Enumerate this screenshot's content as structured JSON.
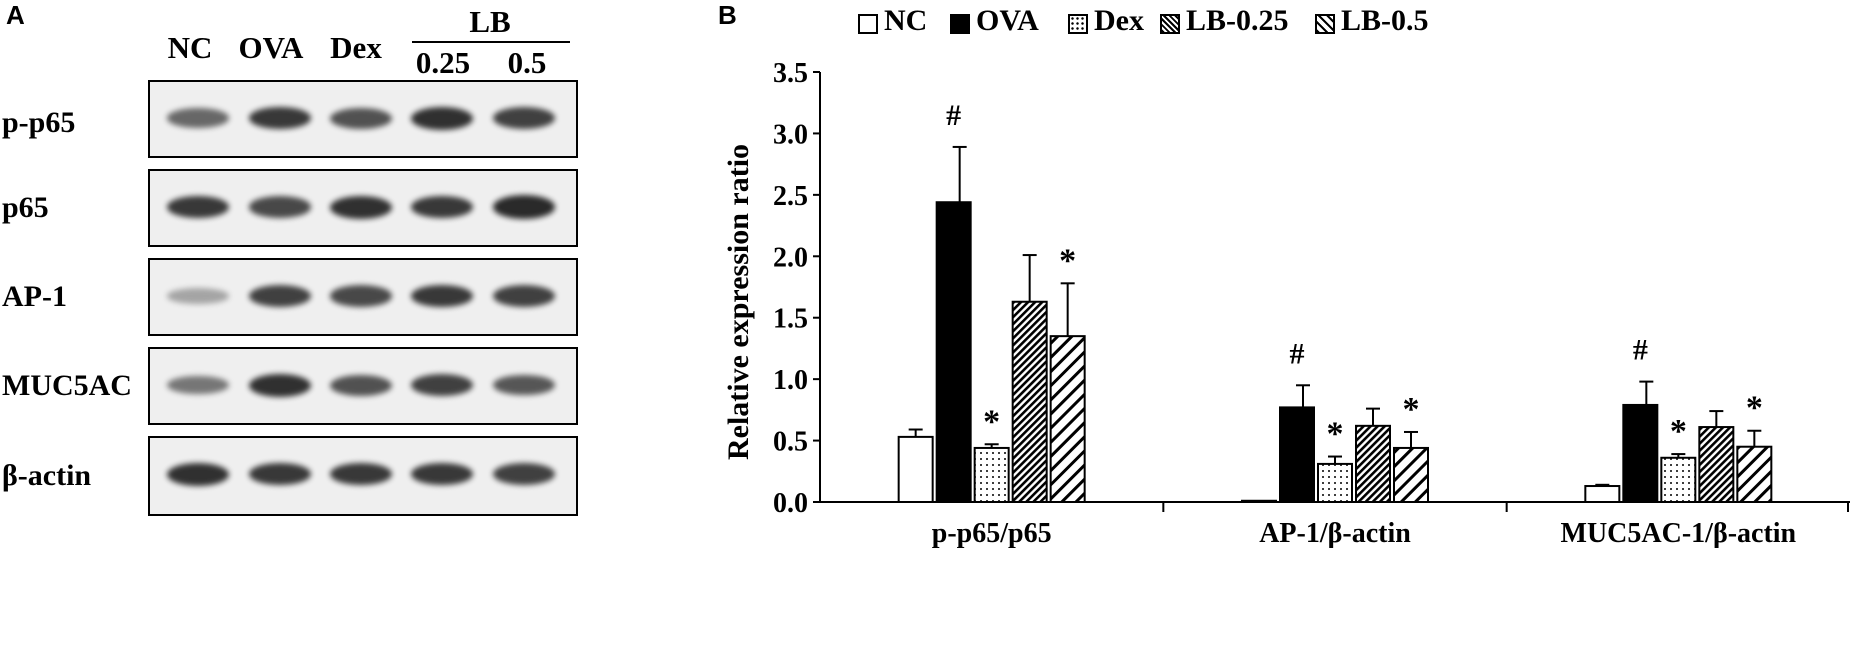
{
  "panel_a": {
    "letter": "A",
    "lanes": [
      "NC",
      "OVA",
      "Dex",
      "0.25",
      "0.5"
    ],
    "lb_group_label": "LB",
    "rows": [
      {
        "label": "p-p65",
        "band_intensity": [
          0.55,
          0.85,
          0.7,
          0.9,
          0.8
        ]
      },
      {
        "label": "p65",
        "band_intensity": [
          0.85,
          0.75,
          0.9,
          0.85,
          0.95
        ]
      },
      {
        "label": "AP-1",
        "band_intensity": [
          0.15,
          0.8,
          0.75,
          0.85,
          0.8
        ]
      },
      {
        "label": "MUC5AC",
        "band_intensity": [
          0.45,
          0.9,
          0.7,
          0.8,
          0.65
        ]
      },
      {
        "label": "β-actin",
        "band_intensity": [
          0.9,
          0.85,
          0.85,
          0.85,
          0.8
        ]
      }
    ]
  },
  "panel_b": {
    "letter": "B",
    "chart_data": {
      "type": "bar",
      "ylabel": "Relative expression ratio",
      "ylim": [
        0,
        3.5
      ],
      "yticks": [
        "0.0",
        "0.5",
        "1.0",
        "1.5",
        "2.0",
        "2.5",
        "3.0",
        "3.5"
      ],
      "categories": [
        "p-p65/p65",
        "AP-1/β-actin",
        "MUC5AC-1/β-actin"
      ],
      "legend_position": "top",
      "series": [
        {
          "name": "NC",
          "pattern": "white",
          "values": [
            0.53,
            0.01,
            0.13
          ],
          "errors": [
            0.06,
            0.0,
            0.01
          ],
          "marks": [
            "",
            "",
            ""
          ]
        },
        {
          "name": "OVA",
          "pattern": "black",
          "values": [
            2.44,
            0.77,
            0.79
          ],
          "errors": [
            0.45,
            0.18,
            0.19
          ],
          "marks": [
            "#",
            "#",
            "#"
          ]
        },
        {
          "name": "Dex",
          "pattern": "dots",
          "values": [
            0.44,
            0.31,
            0.36
          ],
          "errors": [
            0.03,
            0.06,
            0.03
          ],
          "marks": [
            "*",
            "*",
            "*"
          ]
        },
        {
          "name": "LB-0.25",
          "pattern": "dense-hatch",
          "values": [
            1.63,
            0.62,
            0.61
          ],
          "errors": [
            0.38,
            0.14,
            0.13
          ],
          "marks": [
            "",
            "",
            ""
          ]
        },
        {
          "name": "LB-0.5",
          "pattern": "wide-hatch",
          "values": [
            1.35,
            0.44,
            0.45
          ],
          "errors": [
            0.43,
            0.13,
            0.13
          ],
          "marks": [
            "*",
            "*",
            "*"
          ]
        }
      ]
    }
  }
}
